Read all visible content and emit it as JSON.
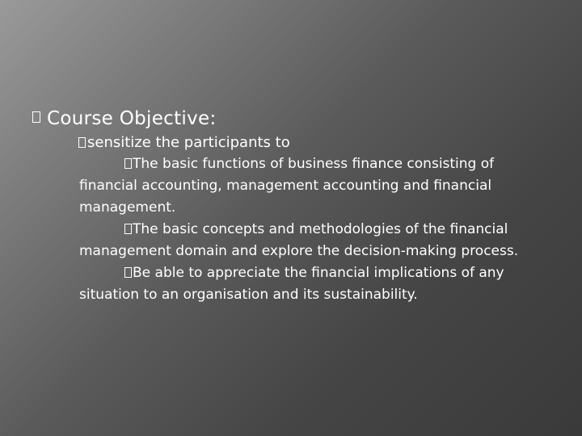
{
  "slide": {
    "heading": "Course Objective:",
    "subpoint": "sensitize the participants  to",
    "objectives": [
      "The basic functions of business finance consisting of financial accounting, management accounting and financial management.",
      "The basic concepts and methodologies of the financial management domain and explore the decision-making process.",
      "Be able to appreciate the financial implications of any situation to an organisation and its sustainability."
    ]
  }
}
